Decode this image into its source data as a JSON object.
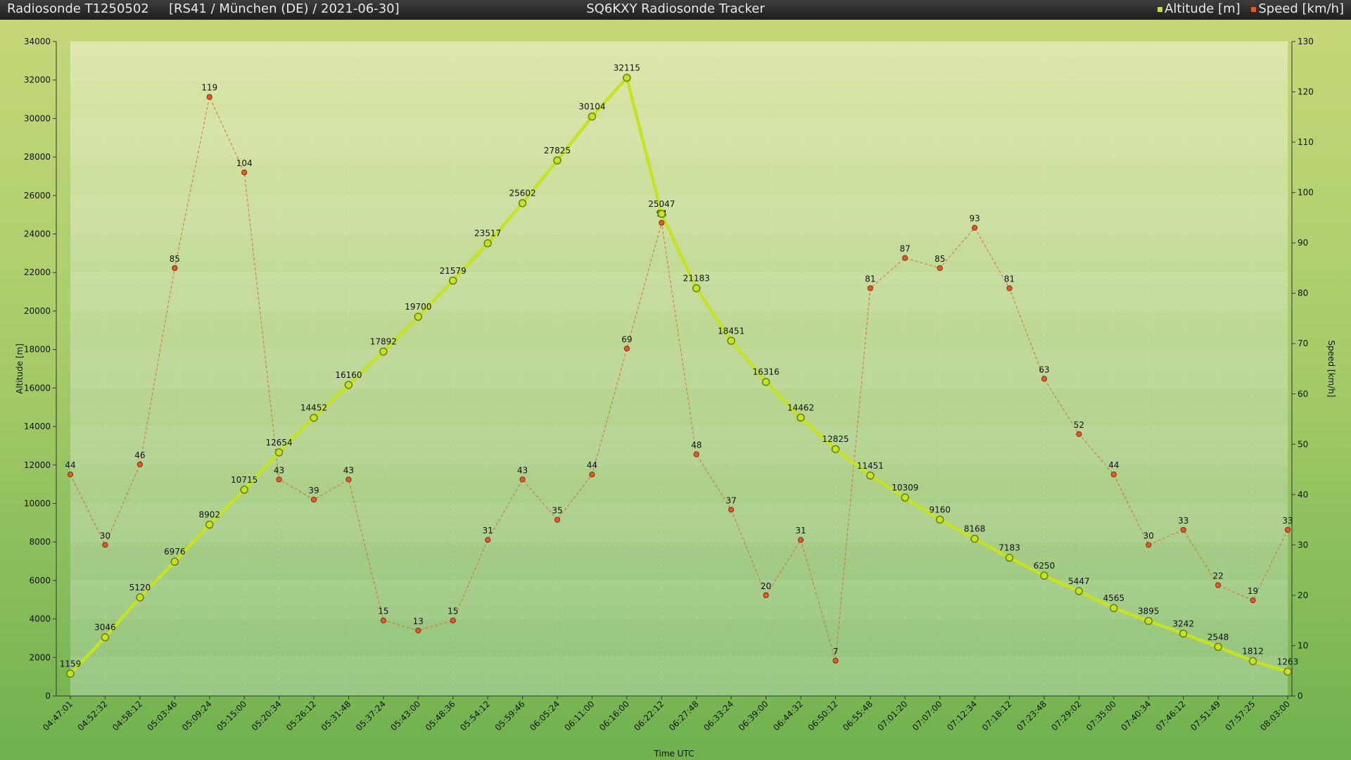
{
  "header": {
    "sonde": "Radiosonde T1250502",
    "info": "[RS41 / München (DE) / 2021-06-30]",
    "app_title": "SQ6KXY Radiosonde Tracker",
    "legend": [
      {
        "label": "Altitude [m]",
        "color": "#c6e221"
      },
      {
        "label": "Speed [km/h]",
        "color": "#e05a2a"
      }
    ]
  },
  "chart_data": {
    "type": "line",
    "xlabel": "Time UTC",
    "ylabel_left": "Altitude [m]",
    "ylabel_right": "Speed [km/h]",
    "ylim_left": [
      0,
      34000
    ],
    "ylim_right": [
      0,
      130
    ],
    "yticks_left": [
      0,
      2000,
      4000,
      6000,
      8000,
      10000,
      12000,
      14000,
      16000,
      18000,
      20000,
      22000,
      24000,
      26000,
      28000,
      30000,
      32000,
      34000
    ],
    "yticks_right": [
      0,
      10,
      20,
      30,
      40,
      50,
      60,
      70,
      80,
      90,
      100,
      110,
      120,
      130
    ],
    "grid": true,
    "legend_position": "top-right",
    "categories": [
      "04:47:01",
      "04:52:32",
      "04:58:12",
      "05:03:46",
      "05:09:24",
      "05:15:00",
      "05:20:34",
      "05:26:12",
      "05:31:48",
      "05:37:24",
      "05:43:00",
      "05:48:36",
      "05:54:12",
      "05:59:46",
      "06:05:24",
      "06:11:00",
      "06:16:00",
      "06:22:12",
      "06:27:48",
      "06:33:24",
      "06:39:00",
      "06:44:32",
      "06:50:12",
      "06:55:48",
      "07:01:20",
      "07:07:00",
      "07:12:34",
      "07:18:12",
      "07:23:48",
      "07:29:02",
      "07:35:00",
      "07:40:34",
      "07:46:12",
      "07:51:49",
      "07:57:25",
      "08:03:00"
    ],
    "series": [
      {
        "name": "Altitude [m]",
        "axis": "left",
        "color": "#c6e221",
        "values": [
          1159,
          3046,
          5120,
          6976,
          8902,
          10715,
          12654,
          14452,
          16160,
          17892,
          19700,
          21579,
          23517,
          25602,
          27825,
          30104,
          32115,
          25047,
          21183,
          18451,
          16316,
          14462,
          12825,
          11451,
          10309,
          9160,
          8168,
          7183,
          6250,
          5447,
          4565,
          3895,
          3242,
          2548,
          1812,
          1263
        ]
      },
      {
        "name": "Speed [km/h]",
        "axis": "right",
        "color": "#e05a2a",
        "values": [
          44,
          30,
          46,
          85,
          119,
          104,
          43,
          39,
          43,
          15,
          13,
          15,
          31,
          43,
          35,
          44,
          69,
          94,
          48,
          37,
          20,
          31,
          7,
          81,
          87,
          85,
          93,
          81,
          63,
          52,
          44,
          30,
          33,
          22,
          19,
          33
        ]
      }
    ]
  }
}
